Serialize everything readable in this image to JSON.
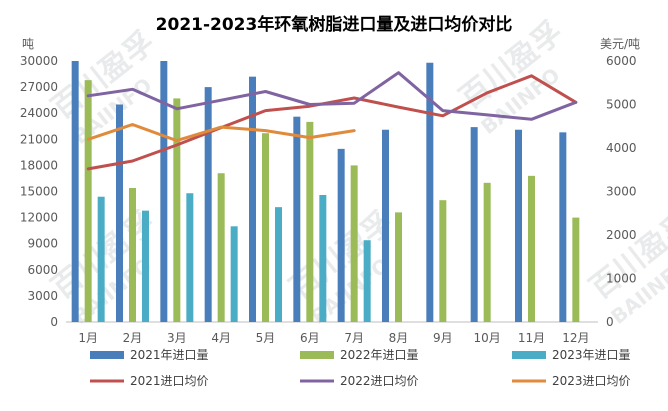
{
  "chart_data": {
    "type": "bar",
    "title": "2021-2023年环氧树脂进口量及进口均价对比",
    "y_left_unit": "吨",
    "y_right_unit": "美元/吨",
    "ylim_left": [
      0,
      30000
    ],
    "ylim_right": [
      0,
      6000
    ],
    "y_left_ticks": [
      0,
      3000,
      6000,
      9000,
      12000,
      15000,
      18000,
      21000,
      24000,
      27000,
      30000
    ],
    "y_right_ticks": [
      0,
      1000,
      2000,
      3000,
      4000,
      5000,
      6000
    ],
    "categories": [
      "1月",
      "2月",
      "3月",
      "4月",
      "5月",
      "6月",
      "7月",
      "8月",
      "9月",
      "10月",
      "11月",
      "12月"
    ],
    "bar_series": [
      {
        "name": "2021年进口量",
        "color": "#4a7ebb",
        "values": [
          30000,
          25000,
          30000,
          27000,
          28200,
          23600,
          19900,
          22100,
          29800,
          22400,
          22100,
          21800
        ]
      },
      {
        "name": "2022年进口量",
        "color": "#9bbb59",
        "values": [
          27800,
          15400,
          25700,
          17100,
          21700,
          23000,
          18000,
          12600,
          14000,
          16000,
          16800,
          12000
        ]
      },
      {
        "name": "2023年进口量",
        "color": "#4bacc6",
        "values": [
          14400,
          12800,
          14800,
          11000,
          13200,
          14600,
          9400,
          null,
          null,
          null,
          null,
          null
        ]
      }
    ],
    "line_series": [
      {
        "name": "2021进口均价",
        "color": "#c0504d",
        "values": [
          3520,
          3700,
          4070,
          4470,
          4860,
          4960,
          5150,
          4940,
          4740,
          5270,
          5660,
          5050
        ]
      },
      {
        "name": "2022进口均价",
        "color": "#8064a2",
        "values": [
          5200,
          5350,
          4900,
          5100,
          5300,
          5000,
          5030,
          5730,
          4860,
          4760,
          4660,
          5050
        ]
      },
      {
        "name": "2023进口均价",
        "color": "#e08a3c",
        "values": [
          4200,
          4540,
          4170,
          4480,
          4400,
          4240,
          4400,
          null,
          null,
          null,
          null,
          null
        ]
      }
    ],
    "legend_position": "bottom",
    "grid": false
  },
  "watermark": {
    "brand": "百川盈孚",
    "latin": "BAIINFO"
  }
}
